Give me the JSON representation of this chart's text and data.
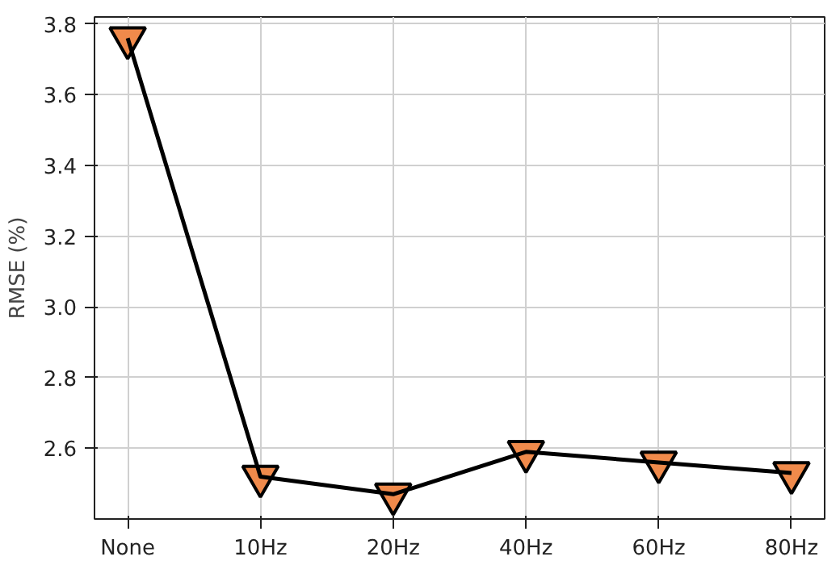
{
  "chart_data": {
    "type": "line",
    "ylabel": "RMSE (%)",
    "categories": [
      "None",
      "10Hz",
      "20Hz",
      "40Hz",
      "60Hz",
      "80Hz"
    ],
    "series": [
      {
        "color": "#f08a4b",
        "values": [
          3.76,
          2.52,
          2.47,
          2.59,
          2.56,
          2.53
        ]
      }
    ],
    "ylim": [
      2.4,
      3.82
    ],
    "yticks": [
      2.6,
      2.8,
      {
        "value": 3.0,
        "label": "3.0"
      },
      3.2,
      3.4,
      3.6,
      3.8
    ],
    "grid": true,
    "marker": "triangle"
  }
}
